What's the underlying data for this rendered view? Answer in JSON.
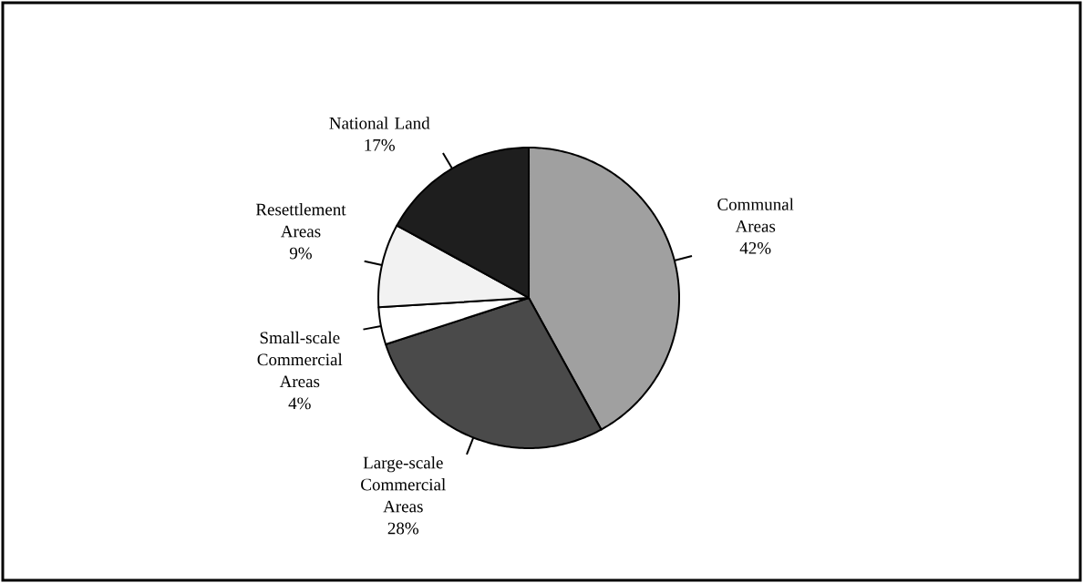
{
  "chart_data": {
    "type": "pie",
    "categories": [
      "Communal Areas",
      "Large-scale Commercial Areas",
      "Small-scale Commercial Areas",
      "Resettlement Areas",
      "National Land"
    ],
    "values": [
      42,
      28,
      4,
      9,
      17
    ],
    "value_labels": [
      "42%",
      "28%",
      "4%",
      "9%",
      "17%"
    ],
    "colors": [
      "#a0a0a0",
      "#4a4a4a",
      "#ffffff",
      "#f2f2f2",
      "#1e1e1e"
    ]
  }
}
